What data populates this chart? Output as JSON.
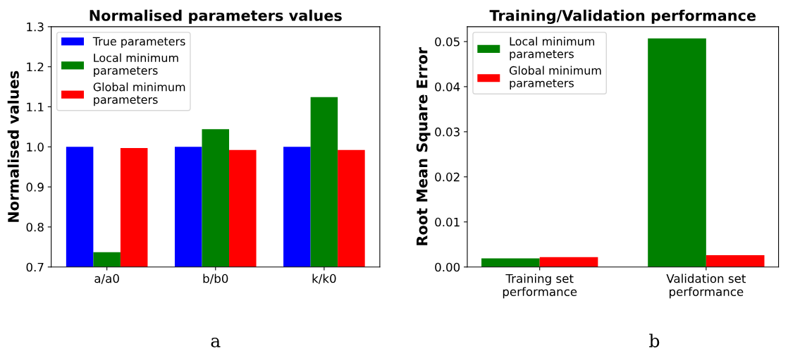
{
  "chart_data": [
    {
      "type": "bar",
      "title": "Normalised parameters values",
      "ylabel": "Normalised values",
      "categories": [
        "a/a0",
        "b/b0",
        "k/k0"
      ],
      "series": [
        {
          "name": "True parameters",
          "color": "#0000ff",
          "values": [
            1.0,
            1.0,
            1.0
          ]
        },
        {
          "name": "Local minimum\nparameters",
          "color": "#008000",
          "values": [
            0.737,
            1.044,
            1.124
          ]
        },
        {
          "name": "Global minimum\nparameters",
          "color": "#ff0000",
          "values": [
            0.997,
            0.992,
            0.992
          ]
        }
      ],
      "ylim": [
        0.7,
        1.3
      ],
      "yticks": [
        0.7,
        0.8,
        0.9,
        {
          "value": 1,
          "label": "1.0"
        },
        1.1,
        1.2,
        1.3
      ],
      "legend": "top left",
      "grid": false,
      "annotations": [
        "a"
      ]
    },
    {
      "type": "bar",
      "title": "Training/Validation performance",
      "ylabel": "Root Mean Square Error",
      "categories": [
        "Training set\nperformance",
        "Validation set\nperformance"
      ],
      "series": [
        {
          "name": "Local minimum\nparameters",
          "color": "#008000",
          "values": [
            0.0019,
            0.0507
          ]
        },
        {
          "name": "Global minimum\nparameters",
          "color": "#ff0000",
          "values": [
            0.0022,
            0.0026
          ]
        }
      ],
      "ylim": [
        0,
        0.0533
      ],
      "yticks": [
        {
          "value": 0,
          "label": "0.00"
        },
        {
          "value": 0.01,
          "label": "0.01"
        },
        {
          "value": 0.02,
          "label": "0.02"
        },
        {
          "value": 0.03,
          "label": "0.03"
        },
        {
          "value": 0.04,
          "label": "0.04"
        },
        {
          "value": 0.05,
          "label": "0.05"
        }
      ],
      "legend": "top left",
      "grid": false,
      "annotations": [
        "b"
      ]
    }
  ]
}
